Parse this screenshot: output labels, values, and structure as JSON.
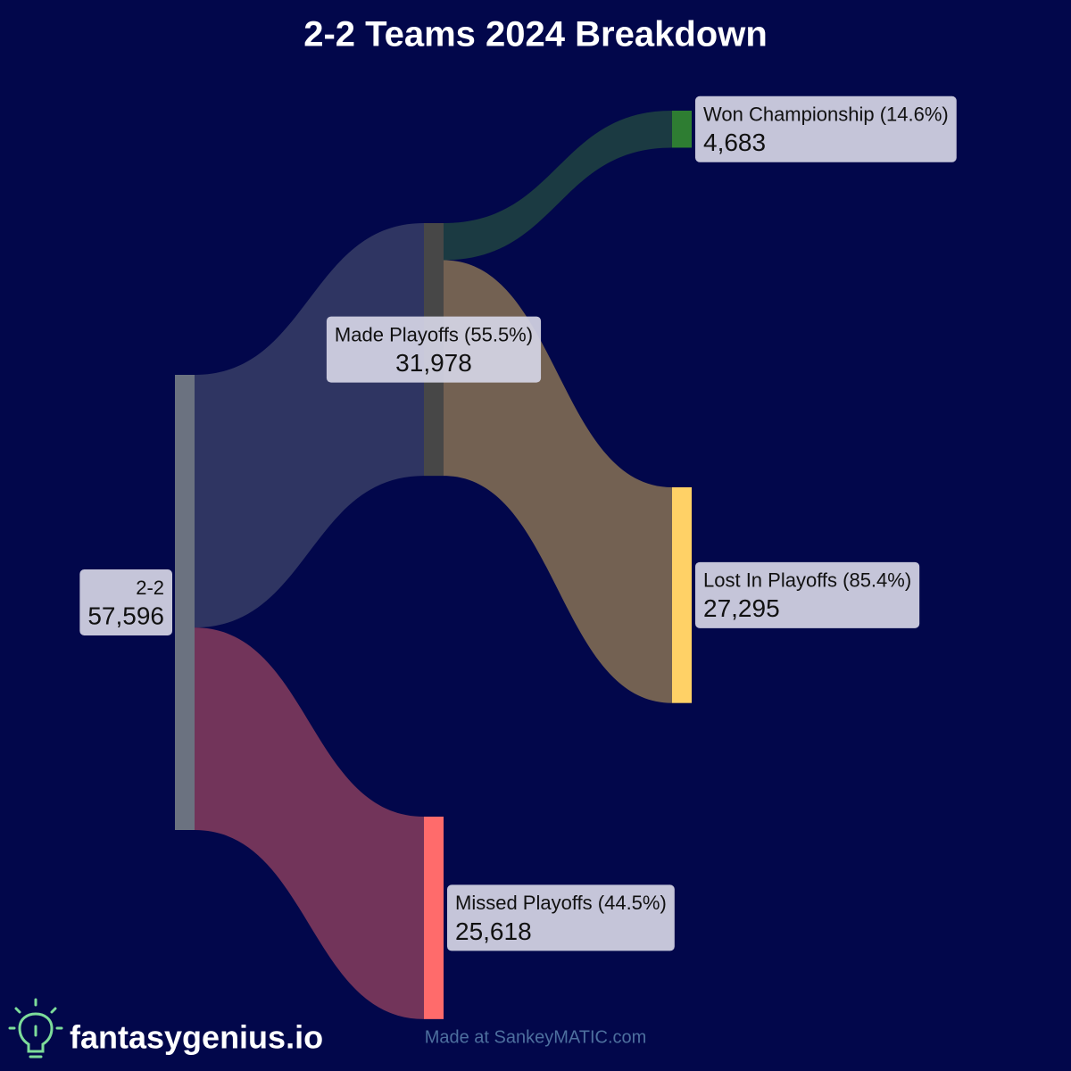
{
  "chart_data": {
    "type": "sankey",
    "title": "2-2 Teams 2024 Breakdown",
    "nodes": [
      "2-2",
      "Made Playoffs (55.5%)",
      "Missed Playoffs (44.5%)",
      "Won Championship (14.6%)",
      "Lost In Playoffs (85.4%)"
    ],
    "values": [
      57596,
      31978,
      25618,
      4683,
      27295
    ],
    "value_labels": [
      "57,596",
      "31,978",
      "25,618",
      "4,683",
      "27,295"
    ],
    "node_colors": [
      "#6b7280",
      "#474747",
      "#ff6b6b",
      "#2e7d32",
      "#ffd166"
    ],
    "links": [
      {
        "source": 0,
        "target": 1,
        "value": 31978,
        "color": "#2f3562"
      },
      {
        "source": 0,
        "target": 2,
        "value": 25618,
        "color": "#72345a"
      },
      {
        "source": 1,
        "target": 3,
        "value": 4683,
        "color": "#1b3a42"
      },
      {
        "source": 1,
        "target": 4,
        "value": 27295,
        "color": "#736152"
      }
    ],
    "brand": "fantasygenius.io",
    "credit": "Made at SankeyMATIC.com"
  }
}
